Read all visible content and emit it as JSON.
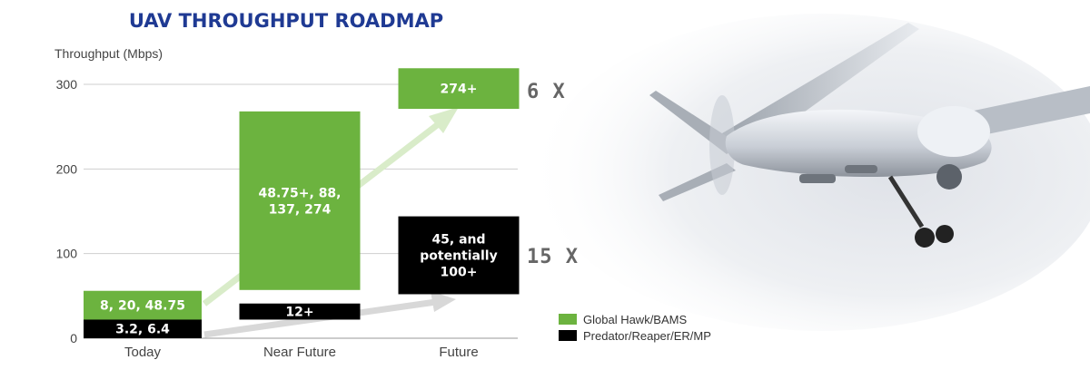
{
  "colors": {
    "green": "#6cb33f",
    "black": "#000000",
    "title": "#1f3a93",
    "grid": "#cfcfcf"
  },
  "chart_data": {
    "type": "bar",
    "title": "UAV THROUGHPUT ROADMAP",
    "ylabel": "Throughput (Mbps)",
    "xlabel": "",
    "ylim": [
      0,
      300
    ],
    "yticks": [
      0,
      100,
      200,
      300
    ],
    "grid": true,
    "legend_position": "bottom-right",
    "categories": [
      "Today",
      "Near Future",
      "Future"
    ],
    "series": [
      {
        "name": "Global Hawk/BAMS",
        "color": "#6cb33f",
        "ranges": [
          [
            20,
            56
          ],
          [
            57,
            268
          ],
          [
            271,
            319
          ]
        ],
        "labels": [
          "8, 20, 48.75",
          "48.75+, 88, 137, 274",
          "274+"
        ]
      },
      {
        "name": "Predator/Reaper/ER/MP",
        "color": "#000000",
        "ranges": [
          [
            0,
            22
          ],
          [
            22,
            41
          ],
          [
            52,
            144
          ]
        ],
        "labels": [
          "3.2, 6.4",
          "12+",
          "45, and potentially 100+"
        ]
      }
    ],
    "annotations": [
      {
        "text": "6 X",
        "y": 292
      },
      {
        "text": "15 X",
        "y": 97
      }
    ]
  },
  "photo": {
    "subject": "uav-drone-photo"
  }
}
